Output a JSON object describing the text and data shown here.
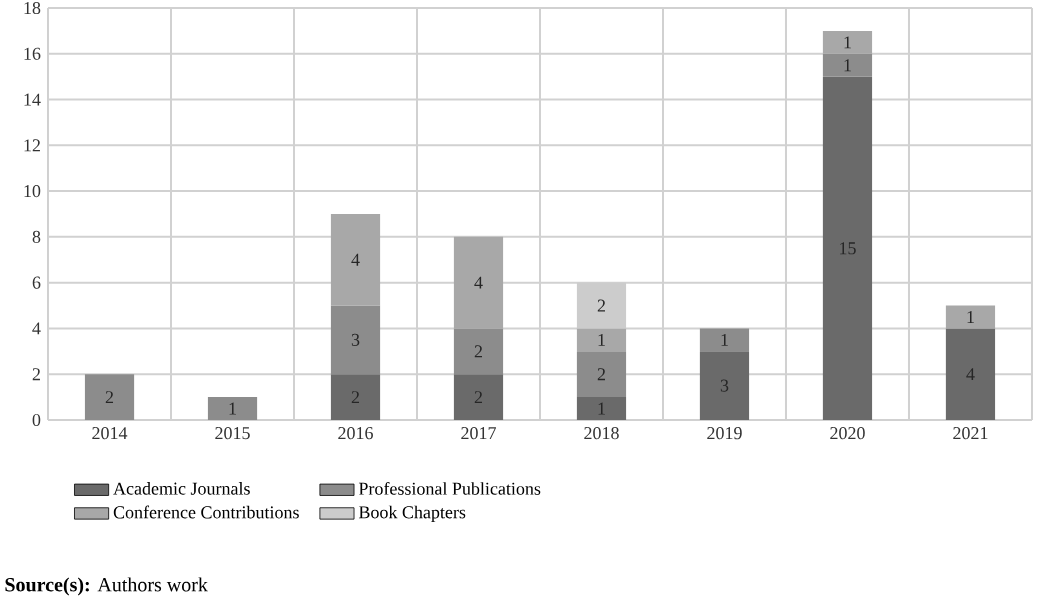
{
  "chart_data": {
    "type": "bar",
    "stacked": true,
    "categories": [
      "2014",
      "2015",
      "2016",
      "2017",
      "2018",
      "2019",
      "2020",
      "2021"
    ],
    "series": [
      {
        "name": "Academic Journals",
        "color": "#6a6a6a",
        "values": [
          null,
          null,
          2,
          2,
          1,
          3,
          15,
          4
        ]
      },
      {
        "name": "Professional Publications",
        "color": "#8c8c8c",
        "values": [
          2,
          1,
          3,
          2,
          2,
          1,
          1,
          null
        ]
      },
      {
        "name": "Conference Contributions",
        "color": "#a8a8a8",
        "values": [
          null,
          null,
          4,
          4,
          1,
          null,
          1,
          1
        ]
      },
      {
        "name": "Book Chapters",
        "color": "#cccccc",
        "values": [
          null,
          null,
          null,
          null,
          2,
          null,
          null,
          null
        ]
      }
    ],
    "ylim": [
      0,
      18
    ],
    "yticks": [
      0,
      2,
      4,
      6,
      8,
      10,
      12,
      14,
      16,
      18
    ],
    "grid": true,
    "legend": "bottom",
    "data_labels": true,
    "annotations": [
      "**Source(s):** Authors work"
    ]
  }
}
